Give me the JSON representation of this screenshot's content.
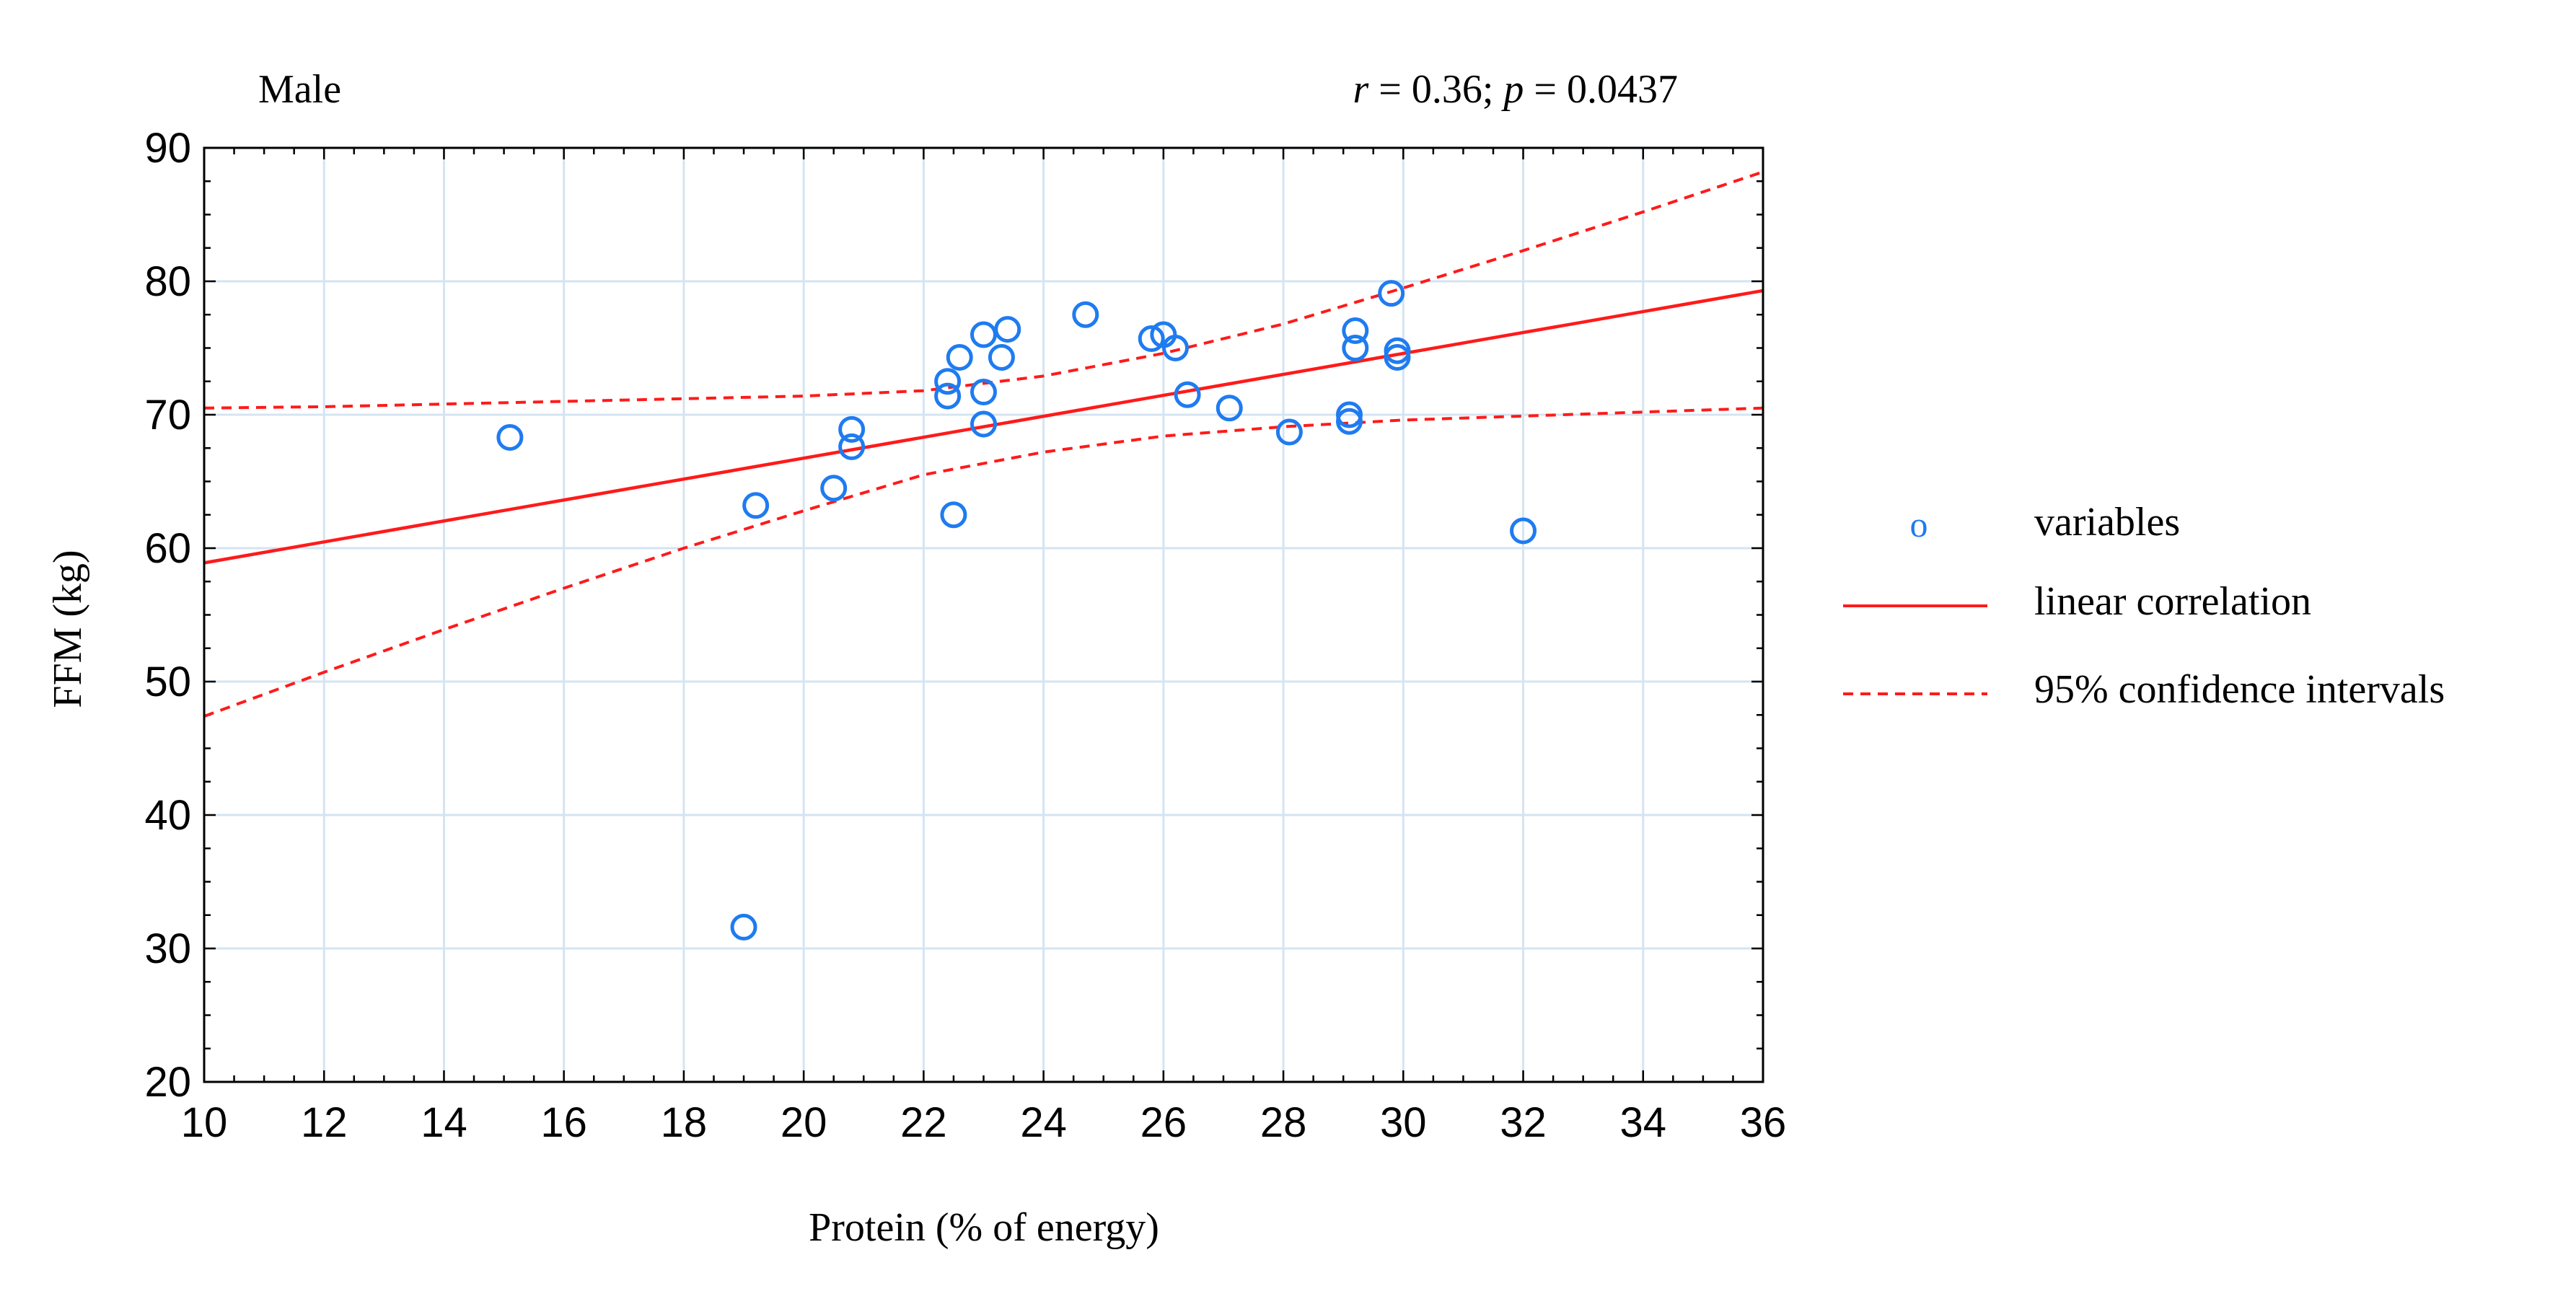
{
  "chart_data": {
    "type": "scatter",
    "title": "Male",
    "stats_label": {
      "r_symbol": "r",
      "r_value": " = 0.36; ",
      "p_symbol": "p",
      "p_value": " = 0.0437"
    },
    "xlabel": "Protein (% of energy)",
    "ylabel": "FFM (kg)",
    "xlim": [
      10,
      36
    ],
    "ylim": [
      20,
      90
    ],
    "x_ticks": [
      10,
      12,
      14,
      16,
      18,
      20,
      22,
      24,
      26,
      28,
      30,
      32,
      34,
      36
    ],
    "y_ticks": [
      20,
      30,
      40,
      50,
      60,
      70,
      80,
      90
    ],
    "x_tick_labels": [
      "10",
      "12",
      "14",
      "16",
      "18",
      "20",
      "22",
      "24",
      "26",
      "28",
      "30",
      "32",
      "34",
      "36"
    ],
    "y_tick_labels": [
      "20",
      "30",
      "40",
      "50",
      "60",
      "70",
      "80",
      "90"
    ],
    "grid": true,
    "points": [
      [
        15.1,
        68.3
      ],
      [
        19.0,
        31.6
      ],
      [
        19.2,
        63.2
      ],
      [
        20.5,
        64.5
      ],
      [
        20.8,
        67.6
      ],
      [
        20.8,
        68.9
      ],
      [
        22.4,
        72.5
      ],
      [
        22.4,
        71.4
      ],
      [
        22.5,
        62.5
      ],
      [
        22.6,
        74.3
      ],
      [
        23.0,
        76.0
      ],
      [
        23.0,
        71.7
      ],
      [
        23.0,
        69.3
      ],
      [
        23.3,
        74.3
      ],
      [
        23.4,
        76.4
      ],
      [
        24.7,
        77.5
      ],
      [
        25.8,
        75.7
      ],
      [
        26.0,
        76.0
      ],
      [
        26.2,
        75.0
      ],
      [
        26.4,
        71.5
      ],
      [
        27.1,
        70.5
      ],
      [
        28.1,
        68.7
      ],
      [
        29.1,
        70.0
      ],
      [
        29.1,
        69.5
      ],
      [
        29.2,
        76.3
      ],
      [
        29.2,
        75.0
      ],
      [
        29.8,
        79.1
      ],
      [
        29.9,
        74.8
      ],
      [
        29.9,
        74.3
      ],
      [
        32.0,
        61.3
      ]
    ],
    "regression_line": [
      [
        10,
        58.9
      ],
      [
        36,
        79.3
      ]
    ],
    "ci_upper": [
      [
        10,
        70.5
      ],
      [
        12,
        70.6
      ],
      [
        14,
        70.8
      ],
      [
        16,
        71.0
      ],
      [
        18,
        71.2
      ],
      [
        20,
        71.4
      ],
      [
        22,
        71.8
      ],
      [
        24,
        72.9
      ],
      [
        26,
        74.6
      ],
      [
        28,
        76.8
      ],
      [
        30,
        79.5
      ],
      [
        32,
        82.3
      ],
      [
        34,
        85.2
      ],
      [
        36,
        88.2
      ]
    ],
    "ci_lower": [
      [
        10,
        47.4
      ],
      [
        12,
        50.7
      ],
      [
        14,
        53.9
      ],
      [
        16,
        57.0
      ],
      [
        18,
        60.0
      ],
      [
        20,
        62.8
      ],
      [
        22,
        65.5
      ],
      [
        24,
        67.2
      ],
      [
        26,
        68.4
      ],
      [
        28,
        69.1
      ],
      [
        30,
        69.6
      ],
      [
        32,
        69.9
      ],
      [
        34,
        70.2
      ],
      [
        36,
        70.5
      ]
    ],
    "legend": {
      "position": "right",
      "entries": [
        {
          "symbol": "o",
          "label": "variables"
        },
        {
          "label": "linear correlation"
        },
        {
          "label": "95% confidence intervals"
        }
      ]
    },
    "colors": {
      "points": "#1f7bf0",
      "line": "#ff1a1a",
      "grid": "#d4e4f2",
      "axis": "#000000"
    }
  }
}
